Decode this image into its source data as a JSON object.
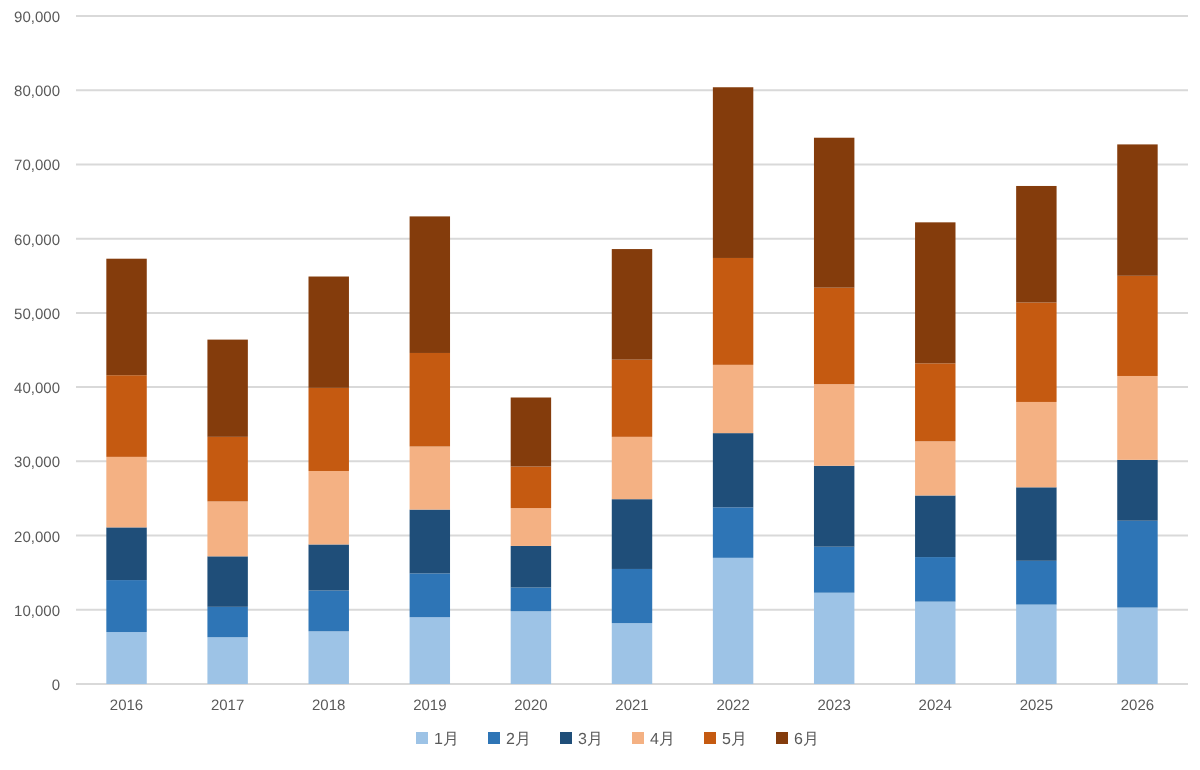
{
  "chart_data": {
    "type": "bar",
    "stacked": true,
    "grid": "y",
    "legend": "bottom",
    "categories": [
      "2016",
      "2017",
      "2018",
      "2019",
      "2020",
      "2021",
      "2022",
      "2023",
      "2024",
      "2025",
      "2026"
    ],
    "ylim": [
      0,
      90000
    ],
    "yticks": [
      {
        "value": 0,
        "label": "0"
      },
      {
        "value": 10000,
        "label": "10,000"
      },
      {
        "value": 20000,
        "label": "20,000"
      },
      {
        "value": 30000,
        "label": "30,000"
      },
      {
        "value": 40000,
        "label": "40,000"
      },
      {
        "value": 50000,
        "label": "50,000"
      },
      {
        "value": 60000,
        "label": "60,000"
      },
      {
        "value": 70000,
        "label": "70,000"
      },
      {
        "value": 80000,
        "label": "80,000"
      },
      {
        "value": 90000,
        "label": "90,000"
      }
    ],
    "series": [
      {
        "name": "1月",
        "color": "#9dc3e6",
        "values": [
          7000,
          6300,
          7100,
          9000,
          9800,
          8200,
          17000,
          12300,
          11100,
          10700,
          10300
        ]
      },
      {
        "name": "2月",
        "color": "#2e75b6",
        "values": [
          7000,
          4100,
          5500,
          5900,
          3200,
          7300,
          6800,
          6200,
          6000,
          5900,
          11700
        ]
      },
      {
        "name": "3月",
        "color": "#1f4e79",
        "values": [
          7100,
          6800,
          6200,
          8600,
          5600,
          9400,
          10000,
          10900,
          8300,
          9900,
          8200
        ]
      },
      {
        "name": "4月",
        "color": "#f4b183",
        "values": [
          9500,
          7400,
          9900,
          8500,
          5100,
          8400,
          9200,
          11000,
          7300,
          11500,
          11300
        ]
      },
      {
        "name": "5月",
        "color": "#c55a11",
        "values": [
          11000,
          8700,
          11200,
          12600,
          5600,
          10400,
          14400,
          13000,
          10500,
          13400,
          13500
        ]
      },
      {
        "name": "6月",
        "color": "#843c0c",
        "values": [
          15700,
          13100,
          15000,
          18400,
          9300,
          14900,
          23000,
          20200,
          19000,
          15700,
          17700
        ]
      }
    ]
  }
}
